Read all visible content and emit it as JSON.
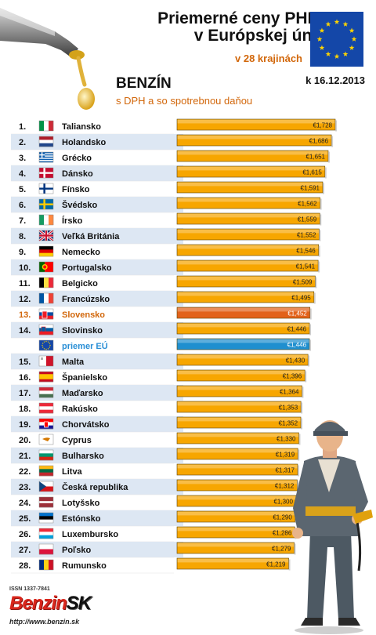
{
  "header": {
    "title_line1": "Priemerné ceny PHM",
    "title_line2": "v Európskej únii",
    "subtitle": "v 28 krajinách",
    "fuel": "BENZÍN",
    "tax_note": "s DPH a so spotrebnou daňou",
    "date": "k 16.12.2013"
  },
  "footer": {
    "issn": "ISSN 1337-7841",
    "logo_main": "Benzin",
    "logo_suffix": "SK",
    "url": "http://www.benzin.sk"
  },
  "colors": {
    "bar": "#f7a600",
    "bar_highlight": "#e2621a",
    "bar_average": "#1f8fcf",
    "highlight_text": "#d2670b",
    "average_text": "#2a8fd6",
    "row_stripe": "#dde7f3"
  },
  "chart_data": {
    "type": "bar",
    "orientation": "horizontal",
    "currency": "€",
    "value_labels": true,
    "highlight": "Slovensko",
    "average_label": "priemer EÚ",
    "rows": [
      {
        "rank": "1.",
        "country": "Taliansko",
        "flag": "it",
        "value": 1.728,
        "label": "€1,728"
      },
      {
        "rank": "2.",
        "country": "Holandsko",
        "flag": "nl",
        "value": 1.686,
        "label": "€1,686"
      },
      {
        "rank": "3.",
        "country": "Grécko",
        "flag": "gr",
        "value": 1.651,
        "label": "€1,651"
      },
      {
        "rank": "4.",
        "country": "Dánsko",
        "flag": "dk",
        "value": 1.615,
        "label": "€1,615"
      },
      {
        "rank": "5.",
        "country": "Fínsko",
        "flag": "fi",
        "value": 1.591,
        "label": "€1,591"
      },
      {
        "rank": "6.",
        "country": "Švédsko",
        "flag": "se",
        "value": 1.562,
        "label": "€1,562"
      },
      {
        "rank": "7.",
        "country": "Írsko",
        "flag": "ie",
        "value": 1.559,
        "label": "€1,559"
      },
      {
        "rank": "8.",
        "country": "Veľká Británia",
        "flag": "gb",
        "value": 1.552,
        "label": "€1,552"
      },
      {
        "rank": "9.",
        "country": "Nemecko",
        "flag": "de",
        "value": 1.546,
        "label": "€1,546"
      },
      {
        "rank": "10.",
        "country": "Portugalsko",
        "flag": "pt",
        "value": 1.541,
        "label": "€1,541"
      },
      {
        "rank": "11.",
        "country": "Belgicko",
        "flag": "be",
        "value": 1.509,
        "label": "€1,509"
      },
      {
        "rank": "12.",
        "country": "Francúzsko",
        "flag": "fr",
        "value": 1.495,
        "label": "€1,495"
      },
      {
        "rank": "13.",
        "country": "Slovensko",
        "flag": "sk",
        "value": 1.452,
        "label": "€1,452",
        "highlight": true
      },
      {
        "rank": "14.",
        "country": "Slovinsko",
        "flag": "si",
        "value": 1.446,
        "label": "€1,446"
      },
      {
        "rank": "",
        "country": "priemer EÚ",
        "flag": "eu",
        "value": 1.446,
        "label": "€1,446",
        "average": true
      },
      {
        "rank": "15.",
        "country": "Malta",
        "flag": "mt",
        "value": 1.43,
        "label": "€1,430"
      },
      {
        "rank": "16.",
        "country": "Španielsko",
        "flag": "es",
        "value": 1.396,
        "label": "€1,396"
      },
      {
        "rank": "17.",
        "country": "Maďarsko",
        "flag": "hu",
        "value": 1.364,
        "label": "€1,364"
      },
      {
        "rank": "18.",
        "country": "Rakúsko",
        "flag": "at",
        "value": 1.353,
        "label": "€1,353"
      },
      {
        "rank": "19.",
        "country": "Chorvátsko",
        "flag": "hr",
        "value": 1.352,
        "label": "€1,352"
      },
      {
        "rank": "20.",
        "country": "Cyprus",
        "flag": "cy",
        "value": 1.33,
        "label": "€1,330"
      },
      {
        "rank": "21.",
        "country": "Bulharsko",
        "flag": "bg",
        "value": 1.319,
        "label": "€1,319"
      },
      {
        "rank": "22.",
        "country": "Litva",
        "flag": "lt",
        "value": 1.317,
        "label": "€1,317"
      },
      {
        "rank": "23.",
        "country": "Česká republika",
        "flag": "cz",
        "value": 1.312,
        "label": "€1,312"
      },
      {
        "rank": "24.",
        "country": "Lotyšsko",
        "flag": "lv",
        "value": 1.3,
        "label": "€1,300"
      },
      {
        "rank": "25.",
        "country": "Estónsko",
        "flag": "ee",
        "value": 1.29,
        "label": "€1,290"
      },
      {
        "rank": "26.",
        "country": "Luxembursko",
        "flag": "lu",
        "value": 1.286,
        "label": "€1,286"
      },
      {
        "rank": "27.",
        "country": "Poľsko",
        "flag": "pl",
        "value": 1.279,
        "label": "€1,279"
      },
      {
        "rank": "28.",
        "country": "Rumunsko",
        "flag": "ro",
        "value": 1.219,
        "label": "€1,219"
      }
    ]
  }
}
